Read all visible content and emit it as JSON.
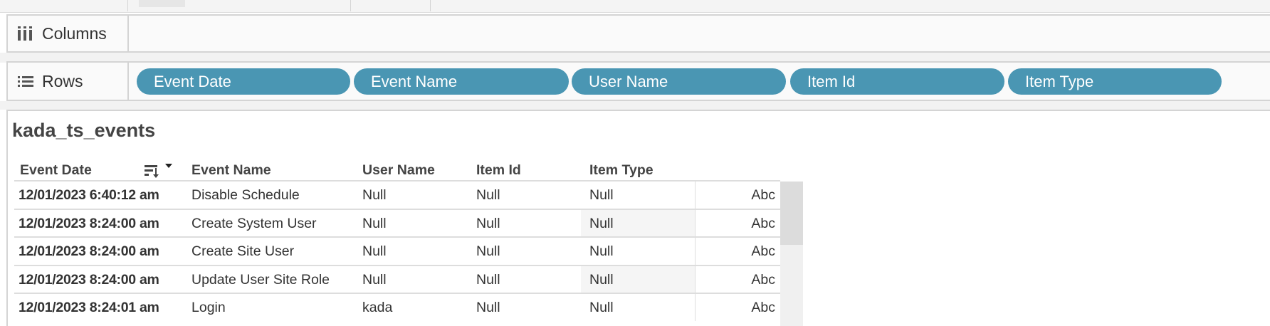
{
  "shelves": {
    "columns_label": "Columns",
    "rows_label": "Rows",
    "columns_icon": "columns-icon",
    "rows_icon": "rows-list-icon",
    "row_pills": [
      "Event Date",
      "Event Name",
      "User Name",
      "Item Id",
      "Item Type"
    ]
  },
  "pill_color": "#4a96b3",
  "sheet": {
    "title": "kada_ts_events",
    "headers": [
      "Event Date",
      "Event Name",
      "User Name",
      "Item Id",
      "Item Type"
    ],
    "sort_icon": "sort-descending-icon",
    "rows": [
      {
        "date": "12/01/2023 6:40:12 am",
        "event": "Disable Schedule",
        "user": "Null",
        "item_id": "Null",
        "item_type": "Null",
        "mark": "Abc"
      },
      {
        "date": "12/01/2023 8:24:00 am",
        "event": "Create System User",
        "user": "Null",
        "item_id": "Null",
        "item_type": "Null",
        "mark": "Abc"
      },
      {
        "date": "12/01/2023 8:24:00 am",
        "event": "Create Site User",
        "user": "Null",
        "item_id": "Null",
        "item_type": "Null",
        "mark": "Abc"
      },
      {
        "date": "12/01/2023 8:24:00 am",
        "event": "Update User Site Role",
        "user": "Null",
        "item_id": "Null",
        "item_type": "Null",
        "mark": "Abc"
      },
      {
        "date": "12/01/2023 8:24:01 am",
        "event": "Login",
        "user": "kada",
        "item_id": "Null",
        "item_type": "Null",
        "mark": "Abc"
      }
    ]
  }
}
